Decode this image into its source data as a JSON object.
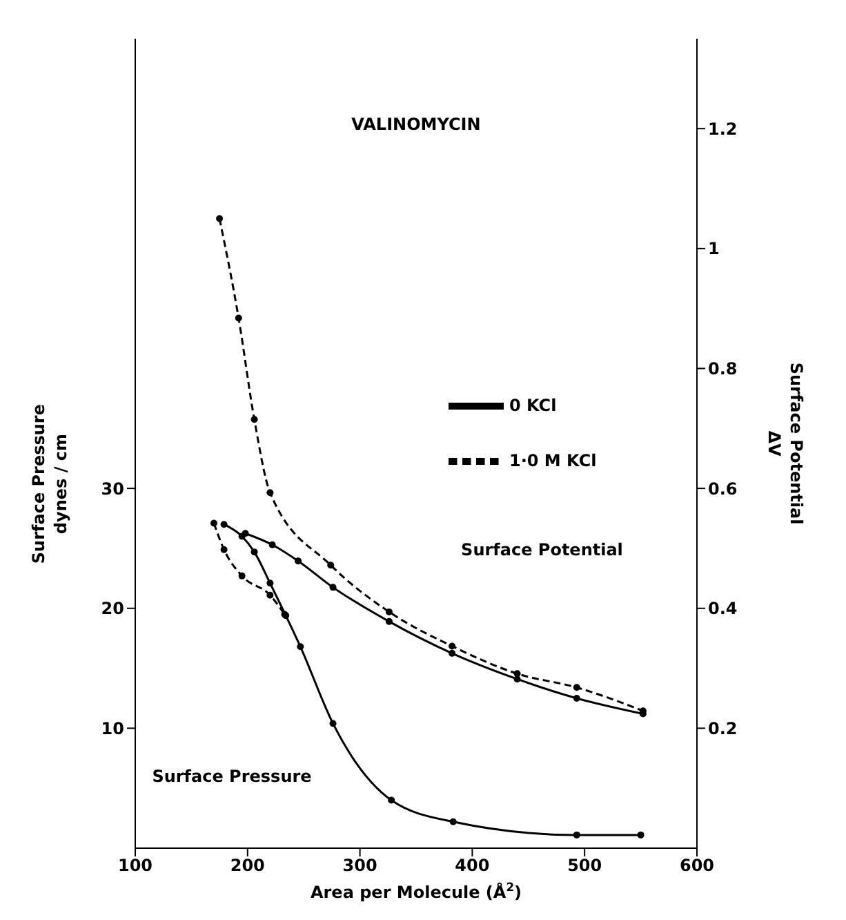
{
  "chart_data": {
    "type": "line",
    "title": "VALINOMYCIN",
    "xlabel": "Area per Molecule (Å$^{2}$)",
    "ylabel": "Surface Pressure\ndynes / cm",
    "y2label": "Surface Potential\nΔV",
    "xlim": [
      100,
      600
    ],
    "xticks": [
      100,
      200,
      300,
      400,
      500,
      600
    ],
    "ylim": [
      0,
      67.5
    ],
    "yticks": [
      10,
      20,
      30
    ],
    "y2lim": [
      0,
      1.35
    ],
    "y2ticks": [
      0.2,
      0.4,
      0.6,
      0.8,
      1.0,
      1.2
    ],
    "marker": "circle",
    "grid": false,
    "legend": "right",
    "annotations": [
      "Surface Potential",
      "Surface Pressure"
    ],
    "series": [
      {
        "name": "0 KCl",
        "color": "#000000",
        "line_style": "solid",
        "x": [
          179,
          195,
          206,
          220,
          234,
          247,
          276,
          328,
          383,
          493,
          550
        ],
        "values": [
          27.0,
          26.0,
          24.7,
          22.1,
          19.4,
          16.8,
          10.4,
          4.0,
          2.2,
          1.1,
          1.1
        ]
      },
      {
        "name": "1·0 M KCl",
        "color": "#000000",
        "line_style": "dashed",
        "x": [
          170,
          179,
          195,
          220,
          233
        ],
        "values": [
          27.1,
          24.9,
          22.7,
          21.1,
          19.5
        ]
      },
      {
        "color": "#000000",
        "line_style": "solid",
        "axis": "y2",
        "x": [
          198,
          222,
          245,
          276,
          326,
          382,
          440,
          493,
          552
        ],
        "values": [
          0.525,
          0.506,
          0.479,
          0.435,
          0.378,
          0.325,
          0.282,
          0.25,
          0.224
        ]
      },
      {
        "color": "#000000",
        "line_style": "dashed",
        "axis": "y2",
        "x": [
          175,
          192,
          206,
          220,
          274,
          326,
          382,
          440,
          493,
          552
        ],
        "values": [
          1.05,
          0.884,
          0.715,
          0.593,
          0.472,
          0.394,
          0.337,
          0.291,
          0.268,
          0.229
        ]
      }
    ]
  }
}
